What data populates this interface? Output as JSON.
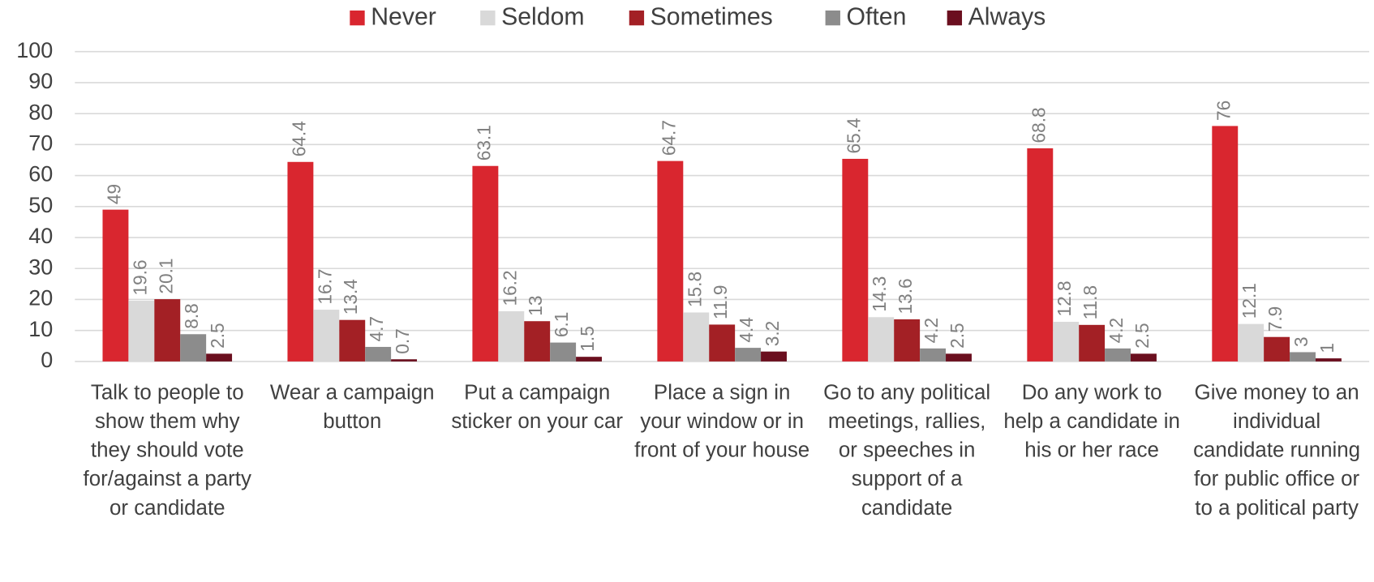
{
  "chart_data": {
    "type": "bar",
    "categories": [
      "Talk to people to show them why they should vote for/against a party or candidate",
      "Wear a campaign button",
      "Put a campaign sticker on your car",
      "Place a sign in your window or in front of your house",
      "Go to any political meetings, rallies, or speeches in support of a candidate",
      "Do any work to help a candidate in his or her race",
      "Give money to an individual candidate running for public office or to a political party"
    ],
    "series": [
      {
        "name": "Never",
        "color": "#d9262f",
        "values": [
          49,
          64.4,
          63.1,
          64.7,
          65.4,
          68.8,
          76
        ]
      },
      {
        "name": "Seldom",
        "color": "#d9d9d9",
        "values": [
          19.6,
          16.7,
          16.2,
          15.8,
          14.3,
          12.8,
          12.1
        ]
      },
      {
        "name": "Sometimes",
        "color": "#a32025",
        "values": [
          20.1,
          13.4,
          13,
          11.9,
          13.6,
          11.8,
          7.9
        ]
      },
      {
        "name": "Often",
        "color": "#8c8c8c",
        "values": [
          8.8,
          4.7,
          6.1,
          4.4,
          4.2,
          4.2,
          3
        ]
      },
      {
        "name": "Always",
        "color": "#6b0f1f",
        "values": [
          2.5,
          0.7,
          1.5,
          3.2,
          2.5,
          2.5,
          1
        ]
      }
    ],
    "ylim": [
      0,
      100
    ],
    "yticks": [
      0,
      10,
      20,
      30,
      40,
      50,
      60,
      70,
      80,
      90,
      100
    ],
    "grid": true,
    "legend": "top"
  }
}
